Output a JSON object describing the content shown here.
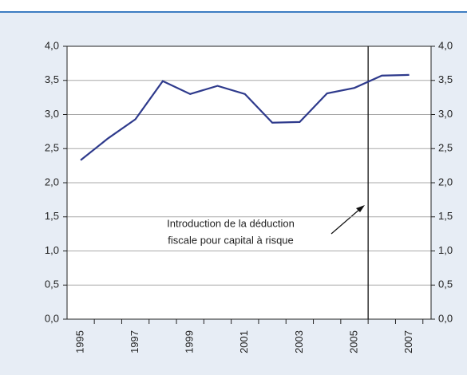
{
  "chart_data": {
    "type": "line",
    "categories": [
      "1995",
      null,
      "1997",
      null,
      "1999",
      null,
      "2001",
      null,
      "2003",
      null,
      "2005",
      null,
      "2007"
    ],
    "series": [
      {
        "color": "#2e3a8c",
        "values": [
          2.33,
          2.65,
          2.93,
          3.49,
          3.3,
          3.42,
          3.3,
          2.88,
          2.89,
          3.31,
          3.39,
          3.57,
          3.58
        ]
      }
    ],
    "ylim": [
      0,
      4
    ],
    "yticks": [
      {
        "value": 0,
        "label": "0,0"
      },
      {
        "value": 0.5,
        "label": "0,5"
      },
      {
        "value": 1,
        "label": "1,0"
      },
      {
        "value": 1.5,
        "label": "1,5"
      },
      {
        "value": 2,
        "label": "2,0"
      },
      {
        "value": 2.5,
        "label": "2,5"
      },
      {
        "value": 3,
        "label": "3,0"
      },
      {
        "value": 3.5,
        "label": "3,5"
      },
      {
        "value": 4,
        "label": "4,0"
      }
    ],
    "annotation": [
      "Introduction de la déduction",
      "fiscale pour capital à risque"
    ],
    "grid": true
  }
}
